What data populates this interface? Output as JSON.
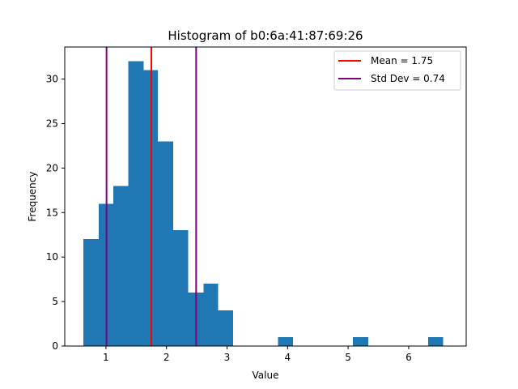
{
  "chart_data": {
    "type": "bar",
    "title": "Histogram of b0:6a:41:87:69:26",
    "xlabel": "Value",
    "ylabel": "Frequency",
    "xlim": [
      0.32,
      6.95
    ],
    "ylim": [
      0,
      33.6
    ],
    "xticks": [
      1,
      2,
      3,
      4,
      5,
      6
    ],
    "yticks": [
      0,
      5,
      10,
      15,
      20,
      25,
      30
    ],
    "bar_color": "#1f77b4",
    "bins": [
      {
        "x0": 0.63,
        "x1": 0.88,
        "count": 12
      },
      {
        "x0": 0.88,
        "x1": 1.12,
        "count": 16
      },
      {
        "x0": 1.12,
        "x1": 1.37,
        "count": 18
      },
      {
        "x0": 1.37,
        "x1": 1.62,
        "count": 32
      },
      {
        "x0": 1.62,
        "x1": 1.86,
        "count": 31
      },
      {
        "x0": 1.86,
        "x1": 2.11,
        "count": 23
      },
      {
        "x0": 2.11,
        "x1": 2.36,
        "count": 13
      },
      {
        "x0": 2.36,
        "x1": 2.61,
        "count": 6
      },
      {
        "x0": 2.61,
        "x1": 2.85,
        "count": 7
      },
      {
        "x0": 2.85,
        "x1": 3.1,
        "count": 4
      },
      {
        "x0": 3.84,
        "x1": 4.09,
        "count": 1
      },
      {
        "x0": 5.08,
        "x1": 5.33,
        "count": 1
      },
      {
        "x0": 6.32,
        "x1": 6.57,
        "count": 1
      }
    ],
    "lines": [
      {
        "label": "Mean = 1.75",
        "x": 1.75,
        "color": "#ff0000"
      },
      {
        "label": "Std Dev = 0.74",
        "x": 1.01,
        "color": "#800080",
        "legend": true
      },
      {
        "x": 2.49,
        "color": "#800080",
        "legend": false
      }
    ],
    "legend": {
      "position": "top-right",
      "entries": [
        {
          "label": "Mean = 1.75",
          "color": "#ff0000"
        },
        {
          "label": "Std Dev = 0.74",
          "color": "#800080"
        }
      ]
    },
    "grid": false
  }
}
